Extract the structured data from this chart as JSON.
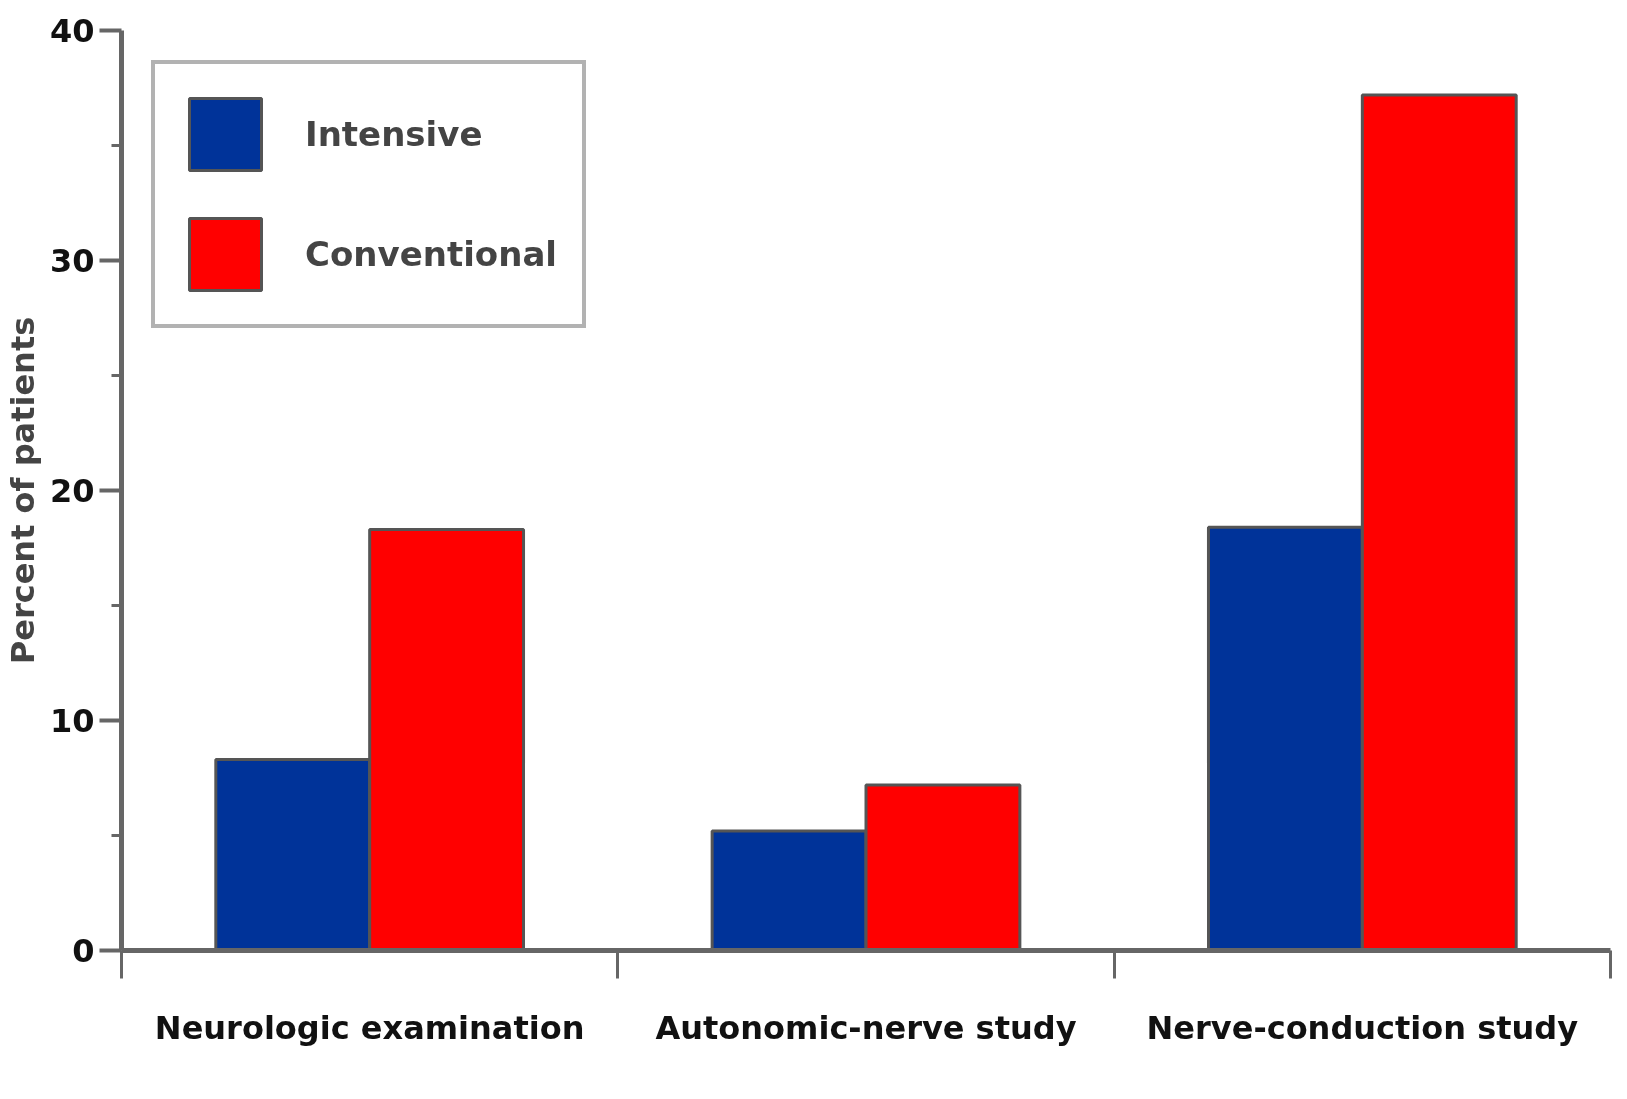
{
  "chart_data": {
    "type": "bar",
    "ylabel": "Percent of patients",
    "categories": [
      "Neurologic examination",
      "Autonomic-nerve study",
      "Nerve-conduction study"
    ],
    "series": [
      {
        "name": "Intensive",
        "color": "#003399",
        "values": [
          8.3,
          5.2,
          18.4
        ]
      },
      {
        "name": "Conventional",
        "color": "#ff0000",
        "values": [
          18.3,
          7.2,
          37.2
        ]
      }
    ],
    "ylim": [
      0,
      40
    ],
    "yticks": [
      0,
      {
        "value": 5,
        "label": null
      },
      10,
      {
        "value": 15,
        "label": null
      },
      20,
      {
        "value": 25,
        "label": null
      },
      30,
      {
        "value": 35,
        "label": null
      },
      40
    ],
    "grid": false,
    "legend": "top left"
  }
}
